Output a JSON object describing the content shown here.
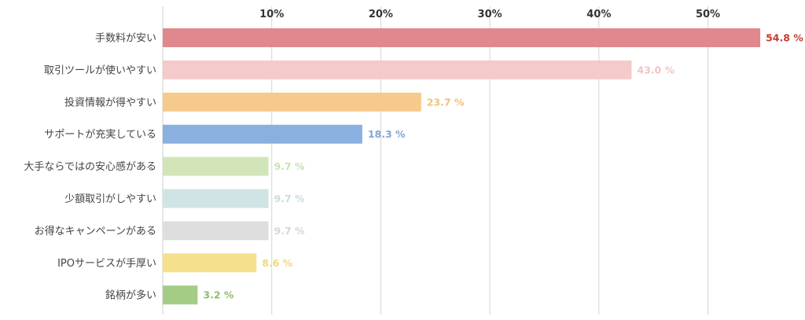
{
  "chart_data": {
    "type": "bar",
    "orientation": "horizontal",
    "categories": [
      "手数料が安い",
      "取引ツールが使いやすい",
      "投資情報が得やすい",
      "サポートが充実している",
      "大手ならではの安心感がある",
      "少額取引がしやすい",
      "お得なキャンペーンがある",
      "IPOサービスが手厚い",
      "銘柄が多い"
    ],
    "values": [
      54.8,
      43.0,
      23.7,
      18.3,
      9.7,
      9.7,
      9.7,
      8.6,
      3.2
    ],
    "value_labels": [
      "54.8 %",
      "43.0 %",
      "23.7 %",
      "18.3 %",
      "9.7 %",
      "9.7 %",
      "9.7 %",
      "8.6 %",
      "3.2 %"
    ],
    "colors": [
      "#e0888c",
      "#f5caca",
      "#f5ca8a",
      "#8ab0e0",
      "#d2e5b8",
      "#d0e4e6",
      "#dedede",
      "#f5e08e",
      "#a5cc85"
    ],
    "label_colors": [
      "#c63a2e",
      "#f2c4c4",
      "#f2c17a",
      "#7fa6dc",
      "#c9e2ad",
      "#c5dde0",
      "#d6d6d6",
      "#f1d77a",
      "#8cbf6a"
    ],
    "xlim": [
      0,
      55
    ],
    "xticks": [
      10,
      20,
      30,
      40,
      50
    ],
    "xtick_labels": [
      "10%",
      "20%",
      "30%",
      "40%",
      "50%"
    ],
    "grid": true,
    "title": "",
    "xlabel": "",
    "ylabel": ""
  }
}
